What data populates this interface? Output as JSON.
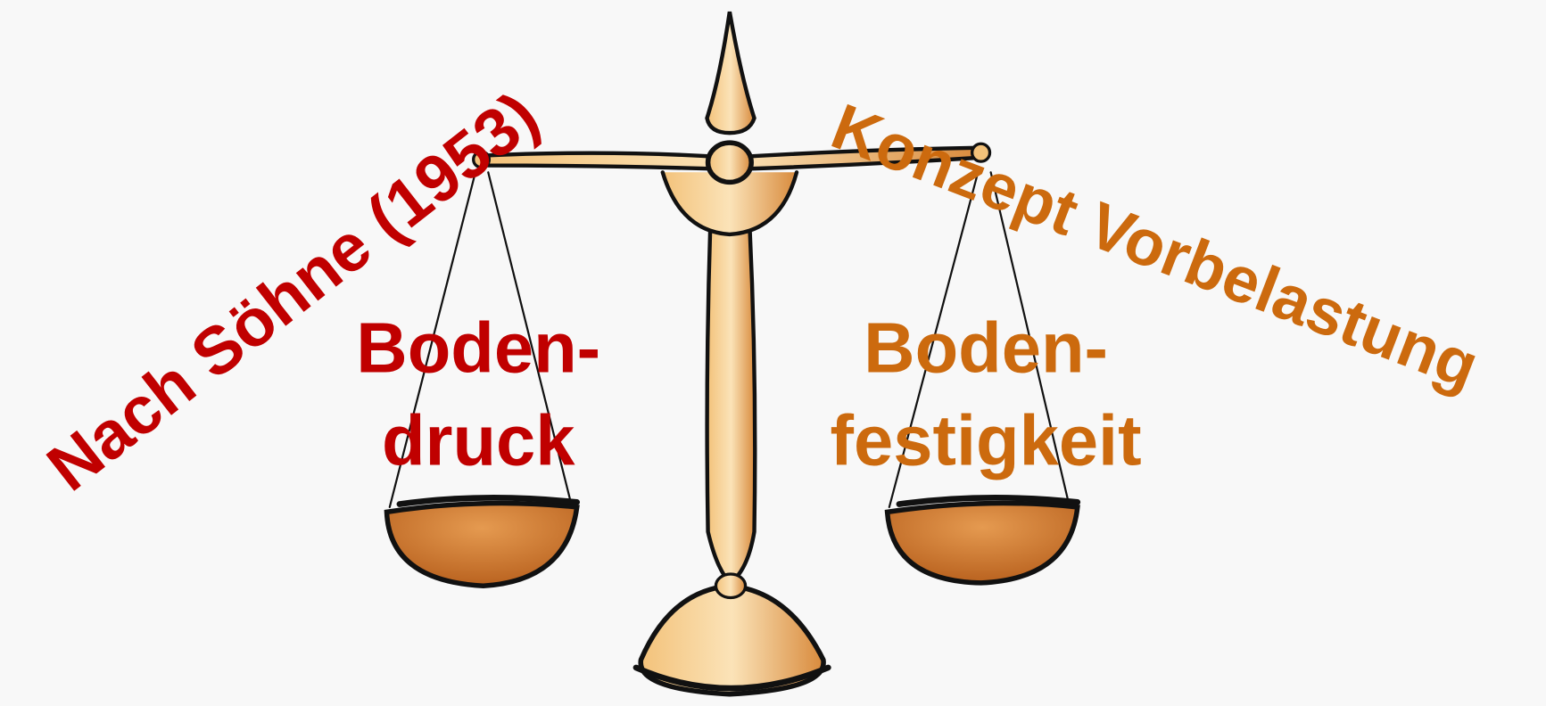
{
  "left_label": "Nach Söhne (1953)",
  "right_label": "Konzept Vorbelastung",
  "left_pan": {
    "lines": [
      "Boden-",
      "druck"
    ]
  },
  "right_pan": {
    "lines": [
      "Boden-",
      "festigkeit"
    ]
  }
}
